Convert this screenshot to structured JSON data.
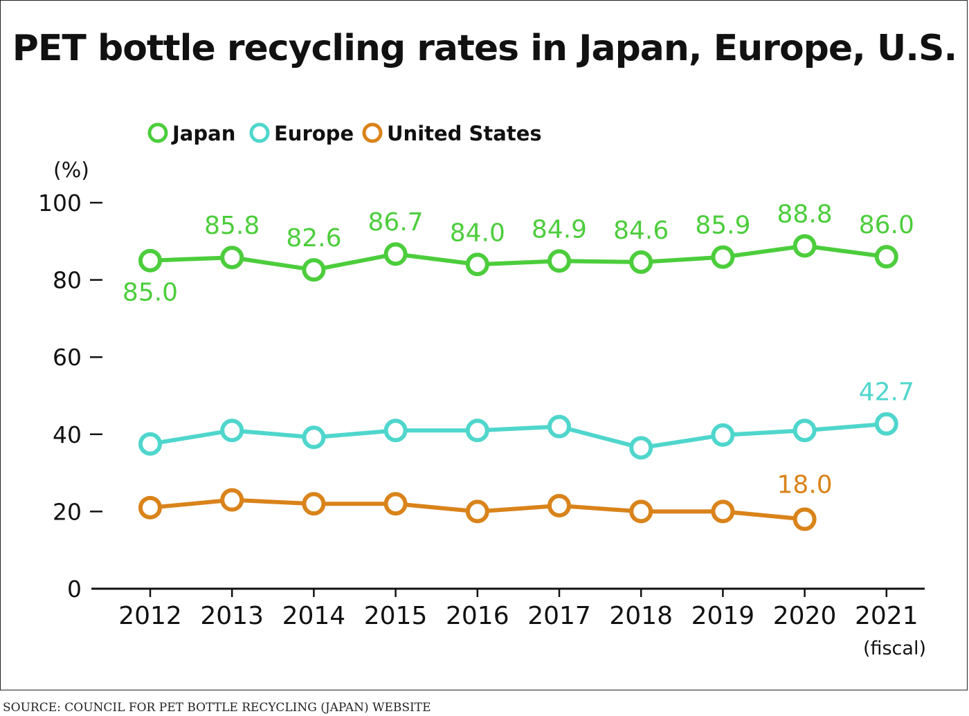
{
  "chart_data": {
    "type": "line",
    "title": "PET bottle recycling rates in Japan, Europe, U.S.",
    "ylabel": "(%)",
    "xlabel_note": "(fiscal)",
    "ylim": [
      0,
      100
    ],
    "yticks": [
      0,
      20,
      40,
      60,
      80,
      100
    ],
    "categories": [
      "2012",
      "2013",
      "2014",
      "2015",
      "2016",
      "2017",
      "2018",
      "2019",
      "2020",
      "2021"
    ],
    "series": [
      {
        "name": "Japan",
        "color": "#4ccd3c",
        "values": [
          85.0,
          85.8,
          82.6,
          86.7,
          84.0,
          84.9,
          84.6,
          85.9,
          88.8,
          86.0
        ],
        "labels": [
          "85.0",
          "85.8",
          "82.6",
          "86.7",
          "84.0",
          "84.9",
          "84.6",
          "85.9",
          "88.8",
          "86.0"
        ]
      },
      {
        "name": "Europe",
        "color": "#4fd6cc",
        "values": [
          37.5,
          41.0,
          39.2,
          41.0,
          41.0,
          42.0,
          36.5,
          39.8,
          41.0,
          42.7
        ],
        "labels": [
          "",
          "",
          "",
          "",
          "",
          "",
          "",
          "",
          "",
          "42.7"
        ]
      },
      {
        "name": "United States",
        "color": "#d9831a",
        "values": [
          21.0,
          23.0,
          22.0,
          22.0,
          20.0,
          21.5,
          20.0,
          20.0,
          18.0,
          null
        ],
        "labels": [
          "",
          "",
          "",
          "",
          "",
          "",
          "",
          "",
          "18.0",
          ""
        ]
      }
    ],
    "legend": "top-left",
    "source": "SOURCE: COUNCIL FOR PET BOTTLE RECYCLING (JAPAN) WEBSITE"
  }
}
